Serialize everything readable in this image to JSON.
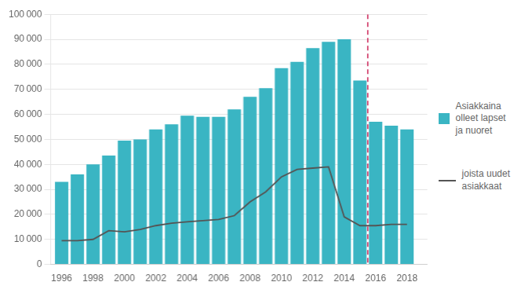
{
  "chart_data": {
    "type": "bar",
    "x": [
      1996,
      1997,
      1998,
      1999,
      2000,
      2001,
      2002,
      2003,
      2004,
      2005,
      2006,
      2007,
      2008,
      2009,
      2010,
      2011,
      2012,
      2013,
      2014,
      2015,
      2016,
      2017,
      2018
    ],
    "series": [
      {
        "name": "Asiakkaina\nolleet lapset\nja nuoret",
        "type": "bar",
        "color": "#3ab5c3",
        "values": [
          33000,
          36000,
          40000,
          43500,
          49500,
          50000,
          54000,
          56000,
          59500,
          59000,
          59000,
          62000,
          67000,
          70500,
          78500,
          81000,
          86500,
          89000,
          90000,
          73500,
          57000,
          55500,
          54000
        ]
      },
      {
        "name": "joista uudet\nasiakkaat",
        "type": "line",
        "color": "#555555",
        "values": [
          9500,
          9500,
          10000,
          13500,
          13000,
          14000,
          15500,
          16500,
          17000,
          17500,
          18000,
          19500,
          25000,
          29000,
          35000,
          38000,
          38500,
          39000,
          19000,
          15500,
          15500,
          16000,
          16000
        ]
      }
    ],
    "annotations": [
      {
        "type": "vline",
        "x": 2015.5,
        "color": "#cc2255",
        "line_style": "dashed"
      }
    ],
    "xlim": [
      1995.3,
      2019.3
    ],
    "xticks": [
      1996,
      1998,
      2000,
      2002,
      2004,
      2006,
      2008,
      2010,
      2012,
      2014,
      2016,
      2018
    ],
    "ylim": [
      0,
      100000
    ],
    "yticks": [
      0,
      {
        "value": 10000,
        "label": "10 000"
      },
      {
        "value": 20000,
        "label": "20 000"
      },
      {
        "value": 30000,
        "label": "30 000"
      },
      {
        "value": 40000,
        "label": "40 000"
      },
      {
        "value": 50000,
        "label": "50 000"
      },
      {
        "value": 60000,
        "label": "60 000"
      },
      {
        "value": 70000,
        "label": "70 000"
      },
      {
        "value": 80000,
        "label": "80 000"
      },
      {
        "value": 90000,
        "label": "90 000"
      },
      {
        "value": 100000,
        "label": "100 000"
      }
    ],
    "grid": "y",
    "legend": "right"
  }
}
